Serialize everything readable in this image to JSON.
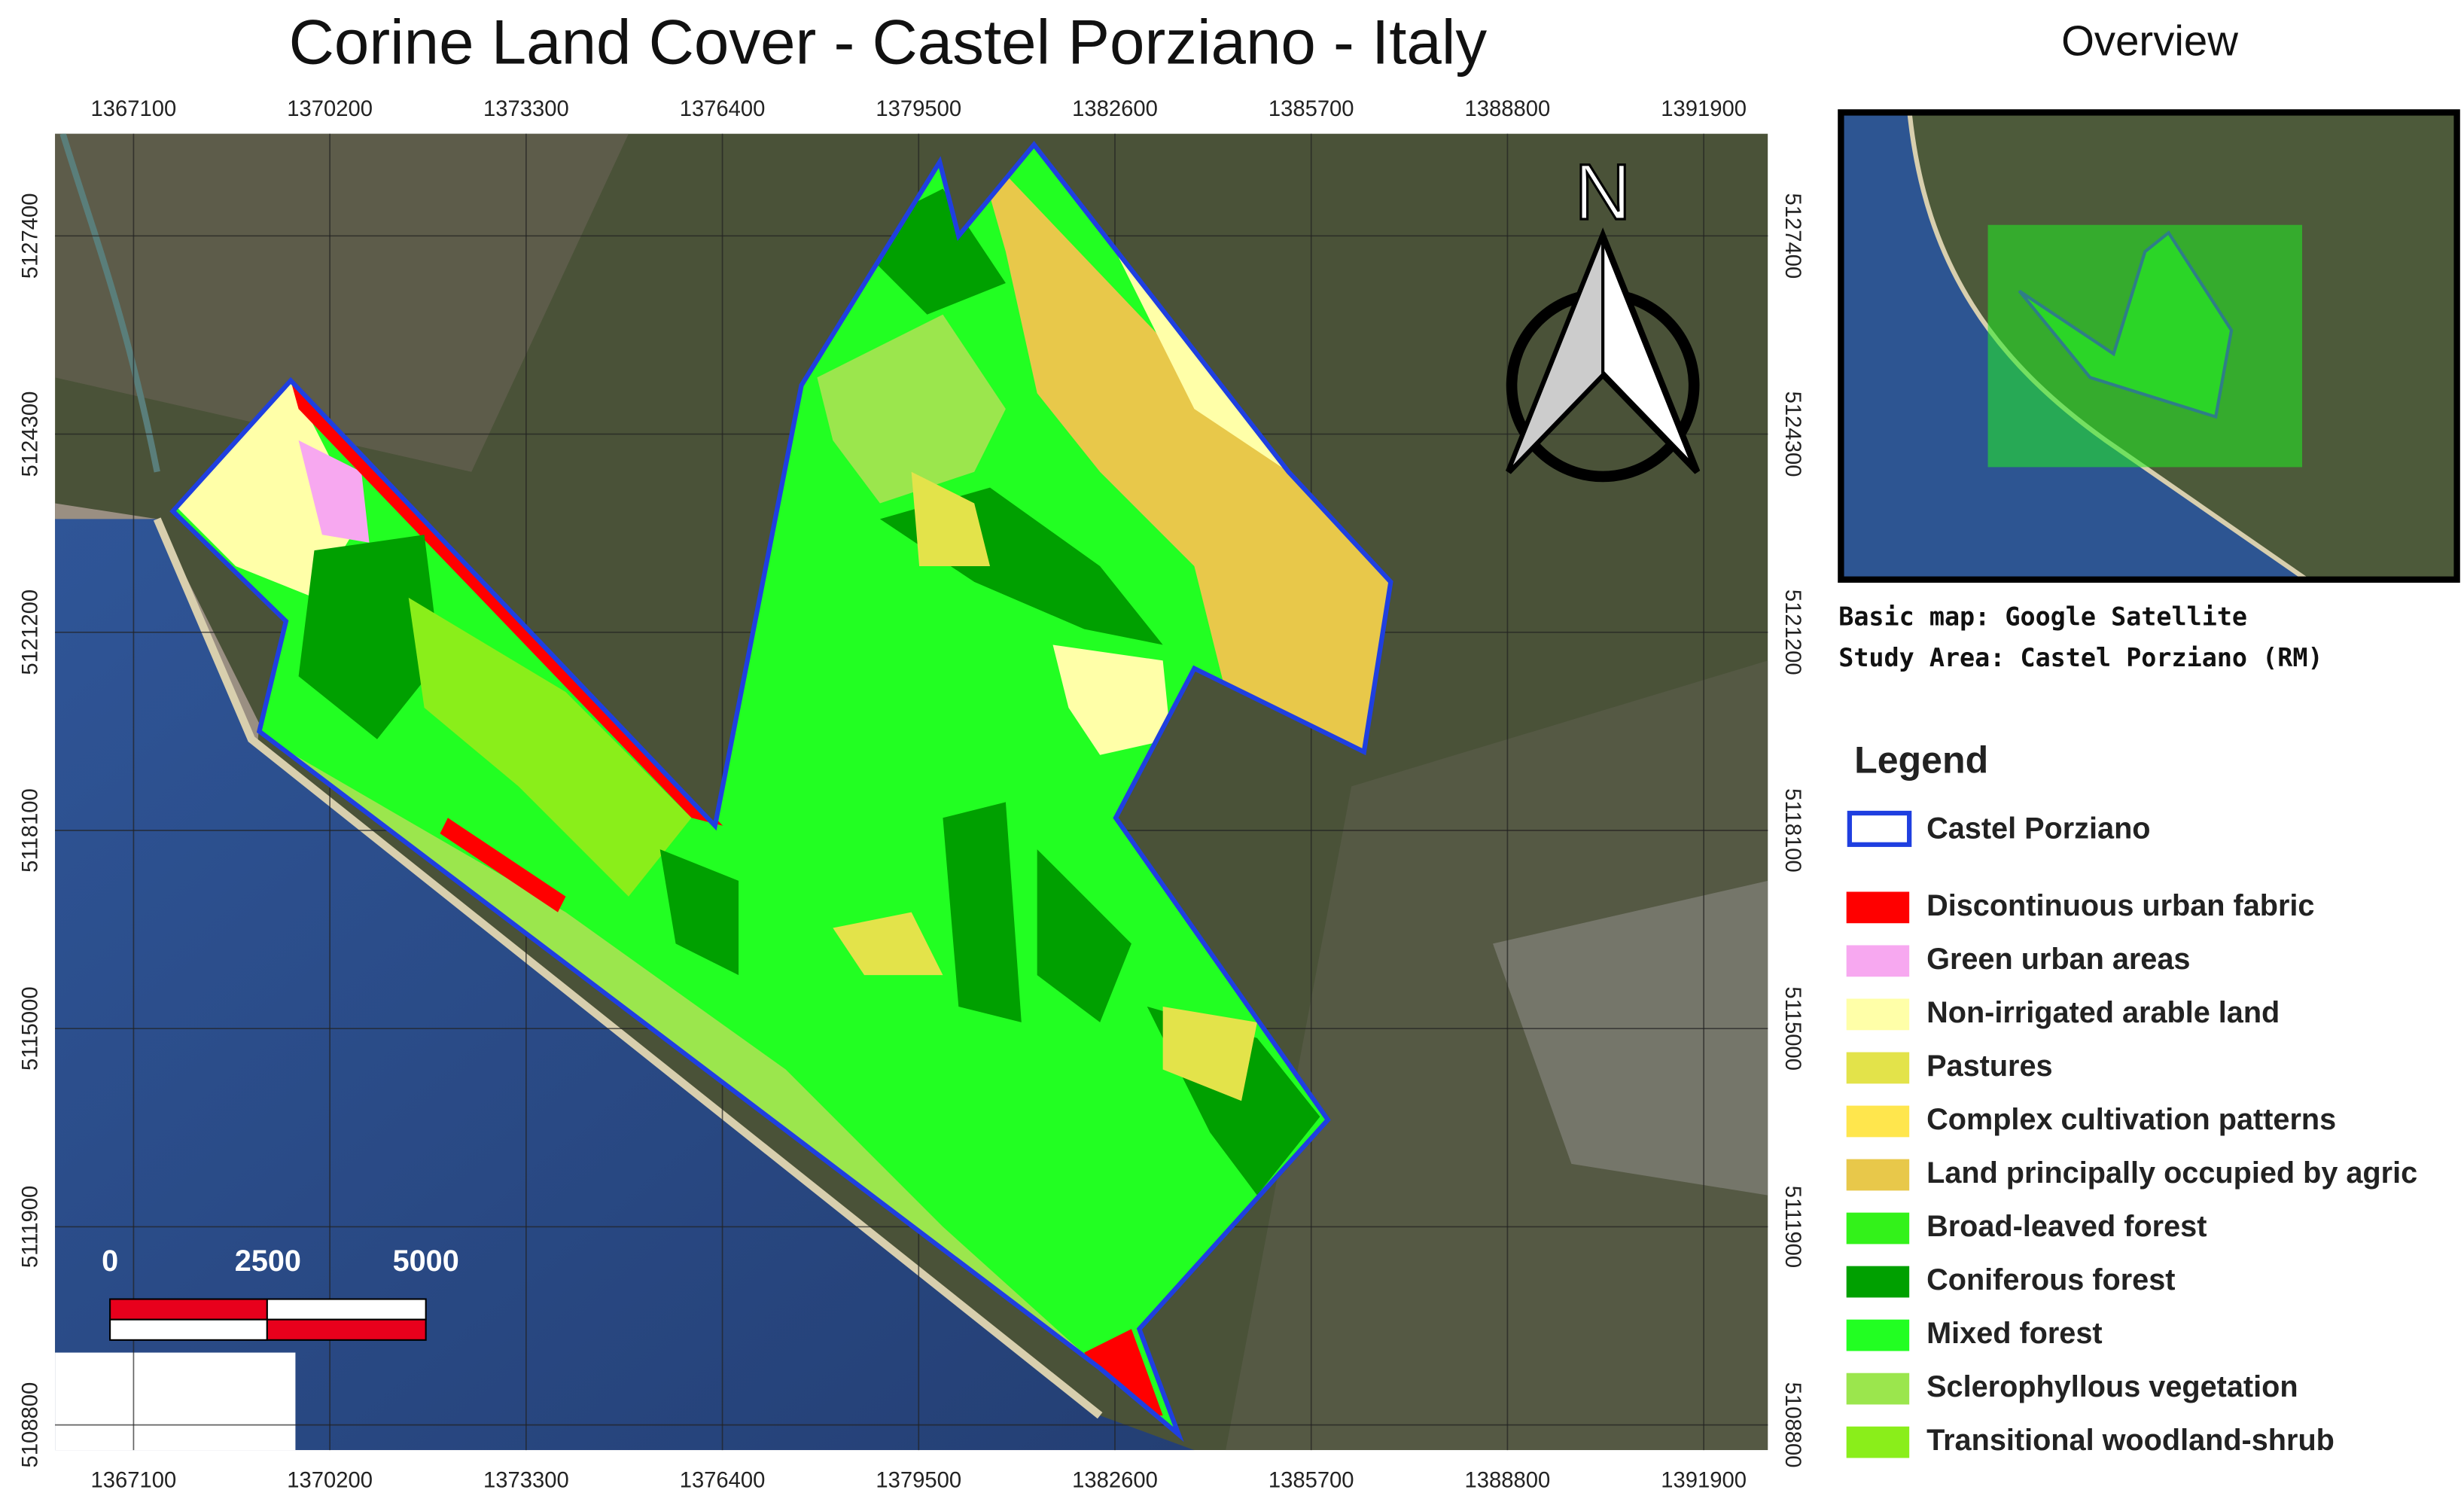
{
  "title": "Corine Land Cover - Castel Porziano - Italy",
  "north": "N",
  "x_ticks": [
    1367100,
    1370200,
    1373300,
    1376400,
    1379500,
    1382600,
    1385700,
    1388800,
    1391900
  ],
  "y_ticks": [
    5127400,
    5124300,
    5121200,
    5118100,
    5115000,
    5111900,
    5108800
  ],
  "scale_bar": {
    "labels": [
      0,
      2500,
      5000
    ]
  },
  "overview": {
    "title": "Overview",
    "captions": [
      "Basic map: Google Satellite",
      "Study Area: Castel Porziano (RM)"
    ]
  },
  "legend": {
    "title": "Legend",
    "boundary": {
      "label": "Castel Porziano",
      "color": "#1f3fe0"
    },
    "items": [
      {
        "label": "Discontinuous urban fabric",
        "color": "#ff0000"
      },
      {
        "label": "Green urban areas",
        "color": "#f7a8f0"
      },
      {
        "label": "Non-irrigated arable land",
        "color": "#ffffa8"
      },
      {
        "label": "Pastures",
        "color": "#e3e34a"
      },
      {
        "label": "Complex cultivation patterns",
        "color": "#ffe64d"
      },
      {
        "label": "Land principally occupied by agric",
        "color": "#e8c84a"
      },
      {
        "label": "Broad-leaved forest",
        "color": "#33f21a"
      },
      {
        "label": "Coniferous forest",
        "color": "#00a000"
      },
      {
        "label": "Mixed forest",
        "color": "#22ff22"
      },
      {
        "label": "Sclerophyllous vegetation",
        "color": "#9be64d"
      },
      {
        "label": "Transitional woodland-shrub",
        "color": "#8aee1a"
      }
    ]
  }
}
